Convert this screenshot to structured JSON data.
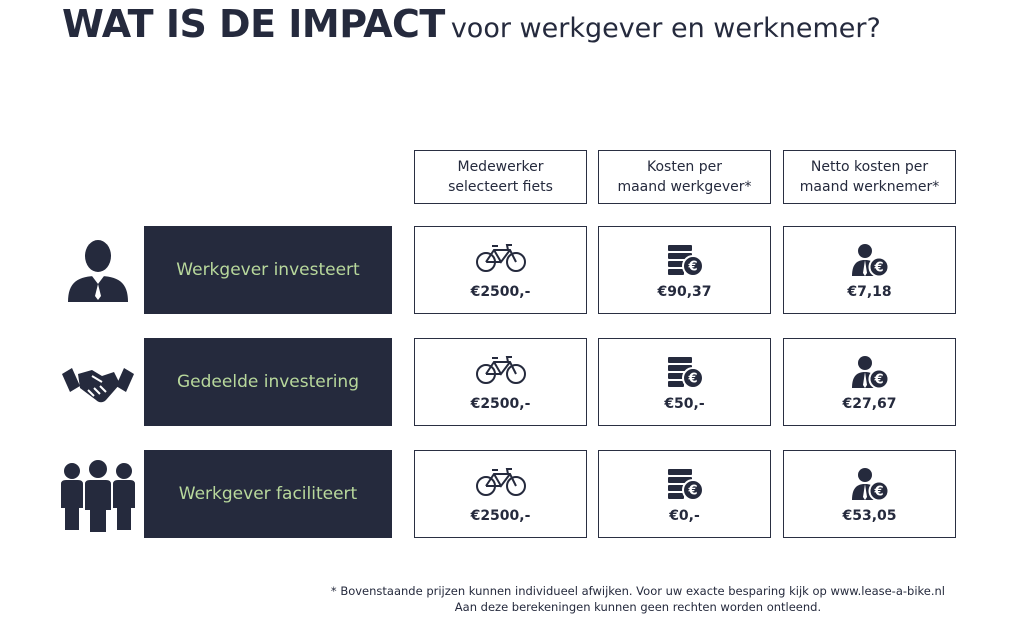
{
  "title": {
    "bold": "WAT IS DE IMPACT",
    "rest": "voor werkgever en werknemer?"
  },
  "columns": [
    "Medewerker\nselecteert fiets",
    "Kosten per\nmaand werkgever*",
    "Netto kosten per\nmaand werknemer*"
  ],
  "rows": [
    {
      "label": "Werkgever investeert",
      "values": [
        "€2500,-",
        "€90,37",
        "€7,18"
      ]
    },
    {
      "label": "Gedeelde investering",
      "values": [
        "€2500,-",
        "€50,-",
        "€27,67"
      ]
    },
    {
      "label": "Werkgever faciliteert",
      "values": [
        "€2500,-",
        "€0,-",
        "€53,05"
      ]
    }
  ],
  "footnote": [
    "* Bovenstaande prijzen kunnen individueel afwijken. Voor uw exacte besparing kijk op www.lease-a-bike.nl",
    "Aan deze berekeningen kunnen geen rechten worden ontleend."
  ]
}
